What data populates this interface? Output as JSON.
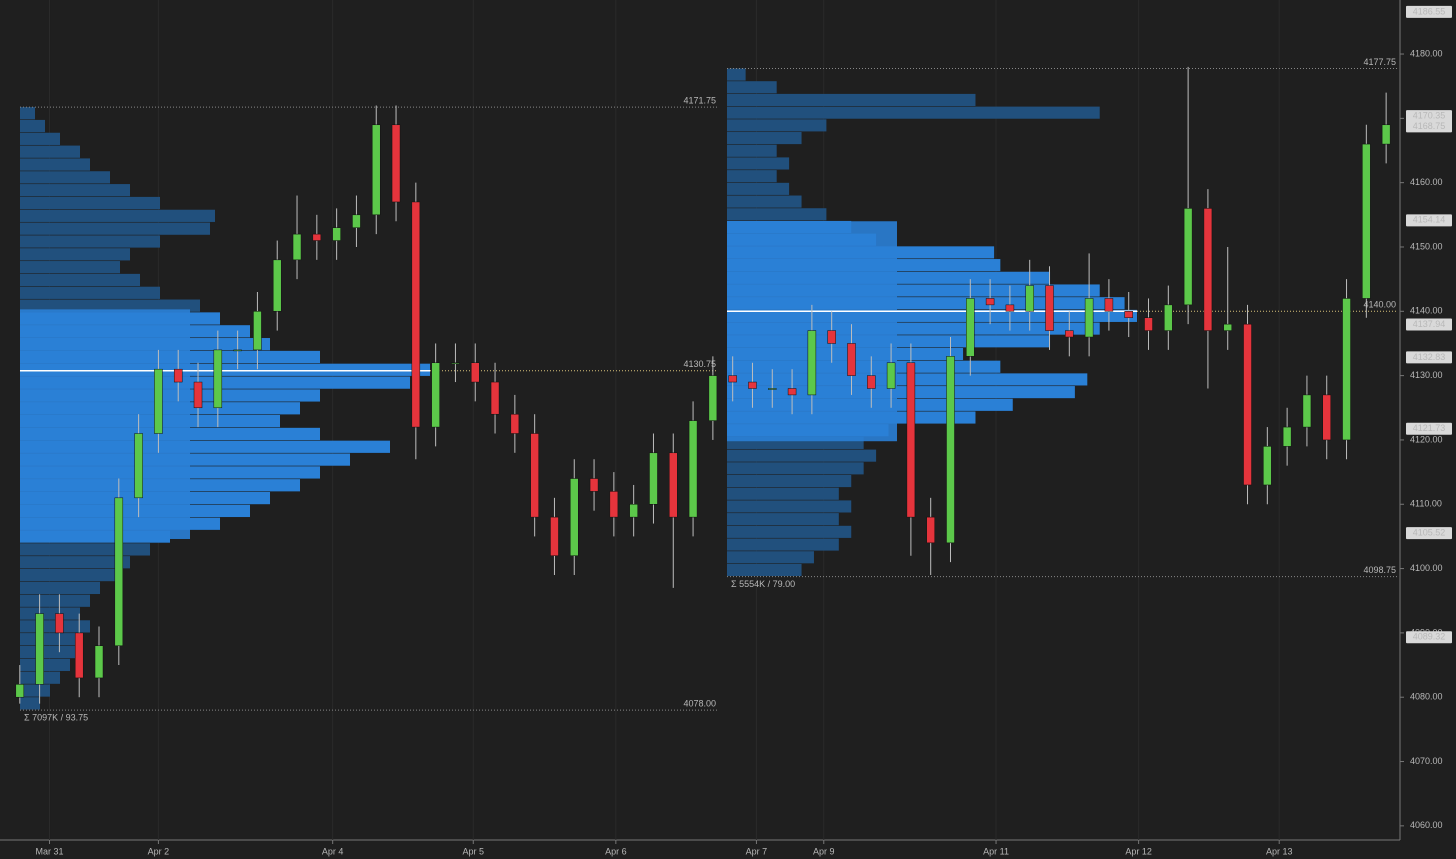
{
  "chart_data": {
    "type": "candlestick",
    "x": [
      0,
      1,
      2,
      3,
      4,
      5,
      6,
      7,
      8,
      9,
      10,
      11,
      12,
      13,
      14,
      15,
      16,
      17,
      18,
      19,
      20,
      21,
      22,
      23,
      24,
      25,
      26,
      27,
      28,
      29,
      30,
      31,
      32,
      33,
      34,
      35,
      36,
      37,
      38,
      39,
      40,
      41,
      42,
      43,
      44,
      45,
      46,
      47,
      48,
      49,
      50,
      51,
      52,
      53,
      54,
      55,
      56,
      57,
      58,
      59,
      60,
      61,
      62,
      63,
      64,
      65,
      66,
      67,
      68,
      69
    ],
    "open": [
      4080,
      4082,
      4093,
      4090,
      4083,
      4088,
      4111,
      4121,
      4131,
      4129,
      4125,
      4134,
      4134,
      4140,
      4148,
      4152,
      4151,
      4153,
      4155,
      4169,
      4157,
      4122,
      4132,
      4132,
      4129,
      4124,
      4121,
      4108,
      4102,
      4114,
      4112,
      4108,
      4110,
      4118,
      4108,
      4123,
      4130,
      4129,
      4128,
      4128,
      4127,
      4137,
      4135,
      4130,
      4128,
      4132,
      4108,
      4104,
      4133,
      4142,
      4141,
      4140,
      4144,
      4137,
      4136,
      4142,
      4140,
      4139,
      4137,
      4141,
      4156,
      4137,
      4138,
      4113,
      4119,
      4122,
      4127,
      4120,
      4142,
      4166
    ],
    "high": [
      4085,
      4096,
      4096,
      4093,
      4091,
      4114,
      4124,
      4134,
      4134,
      4132,
      4137,
      4137,
      4143,
      4151,
      4158,
      4155,
      4156,
      4158,
      4172,
      4172,
      4160,
      4135,
      4135,
      4135,
      4132,
      4127,
      4124,
      4111,
      4117,
      4117,
      4115,
      4113,
      4121,
      4121,
      4126,
      4133,
      4133,
      4132,
      4131,
      4131,
      4141,
      4140,
      4138,
      4133,
      4135,
      4135,
      4111,
      4136,
      4145,
      4145,
      4144,
      4148,
      4147,
      4140,
      4149,
      4145,
      4143,
      4142,
      4144,
      4178,
      4159,
      4150,
      4141,
      4122,
      4125,
      4130,
      4130,
      4145,
      4169,
      4174
    ],
    "low": [
      4079,
      4079,
      4087,
      4080,
      4080,
      4085,
      4108,
      4118,
      4126,
      4122,
      4122,
      4131,
      4131,
      4137,
      4145,
      4148,
      4148,
      4150,
      4152,
      4154,
      4117,
      4119,
      4129,
      4126,
      4121,
      4118,
      4105,
      4099,
      4099,
      4109,
      4105,
      4105,
      4107,
      4097,
      4105,
      4120,
      4126,
      4125,
      4125,
      4124,
      4124,
      4132,
      4127,
      4125,
      4125,
      4102,
      4099,
      4101,
      4130,
      4138,
      4137,
      4137,
      4134,
      4133,
      4133,
      4137,
      4136,
      4134,
      4134,
      4138,
      4128,
      4134,
      4110,
      4110,
      4116,
      4119,
      4117,
      4117,
      4139,
      4163
    ],
    "close": [
      4082,
      4093,
      4090,
      4083,
      4088,
      4111,
      4121,
      4131,
      4129,
      4125,
      4134,
      4134,
      4140,
      4148,
      4152,
      4151,
      4153,
      4155,
      4169,
      4157,
      4122,
      4132,
      4132,
      4129,
      4124,
      4121,
      4108,
      4102,
      4114,
      4112,
      4108,
      4110,
      4118,
      4108,
      4123,
      4130,
      4129,
      4128,
      4128,
      4127,
      4137,
      4135,
      4130,
      4128,
      4132,
      4108,
      4104,
      4133,
      4142,
      4141,
      4140,
      4144,
      4137,
      4136,
      4142,
      4140,
      4139,
      4137,
      4141,
      4156,
      4137,
      4138,
      4113,
      4119,
      4122,
      4127,
      4120,
      4142,
      4166,
      4169
    ],
    "up_color": "#5cc84a",
    "down_color": "#e5343c",
    "xlim": [
      -1,
      69.7
    ],
    "xticks": [
      {
        "value": 1.5,
        "label": "Mar 31"
      },
      {
        "value": 7,
        "label": "Apr 2"
      },
      {
        "value": 15.8,
        "label": "Apr 4"
      },
      {
        "value": 22.9,
        "label": "Apr 5"
      },
      {
        "value": 30.1,
        "label": "Apr 6"
      },
      {
        "value": 37.2,
        "label": "Apr 7"
      },
      {
        "value": 40.6,
        "label": "Apr 9"
      },
      {
        "value": 49.3,
        "label": "Apr 11"
      },
      {
        "value": 56.5,
        "label": "Apr 12"
      },
      {
        "value": 63.6,
        "label": "Apr 13"
      }
    ],
    "ylim": [
      4057.8,
      4188.4
    ],
    "yticks": [
      {
        "value": 4060,
        "label": "4060.00"
      },
      {
        "value": 4070,
        "label": "4070.00"
      },
      {
        "value": 4080,
        "label": "4080.00"
      },
      {
        "value": 4090,
        "label": "4090.00"
      },
      {
        "value": 4100,
        "label": "4100.00"
      },
      {
        "value": 4110,
        "label": "4110.00"
      },
      {
        "value": 4120,
        "label": "4120.00"
      },
      {
        "value": 4130,
        "label": "4130.00"
      },
      {
        "value": 4140,
        "label": "4140.00"
      },
      {
        "value": 4150,
        "label": "4150.00"
      },
      {
        "value": 4160,
        "label": "4160.00"
      },
      {
        "value": 4170,
        "label": "4170.00"
      },
      {
        "value": 4180,
        "label": "4180.00"
      }
    ],
    "price_tags": [
      {
        "value": 4186.55,
        "label": "4186.55"
      },
      {
        "value": 4170.35,
        "label": "4170.35"
      },
      {
        "value": 4168.75,
        "label": "4168.75"
      },
      {
        "value": 4154.14,
        "label": "4154.14"
      },
      {
        "value": 4137.94,
        "label": "4137.94"
      },
      {
        "value": 4132.83,
        "label": "4132.83"
      },
      {
        "value": 4121.73,
        "label": "4121.73"
      },
      {
        "value": 4105.52,
        "label": "4105.52"
      },
      {
        "value": 4089.32,
        "label": "4089.32"
      }
    ],
    "profiles": [
      {
        "high": 4171.75,
        "low": {
          "value": 4078.0,
          "label": "4078.00"
        },
        "poc": 4130.75,
        "va_high": 4140.3,
        "va_low": 4104.6,
        "summary": "Σ 7097K / 93.75",
        "volumes": [
          20,
          30,
          40,
          50,
          55,
          60,
          70,
          60,
          70,
          80,
          100,
          110,
          130,
          150,
          200,
          230,
          250,
          280,
          300,
          330,
          370,
          300,
          260,
          280,
          300,
          390,
          410,
          300,
          250,
          230,
          200,
          180,
          140,
          120,
          100,
          110,
          140,
          190,
          195,
          140,
          110,
          90,
          70,
          60,
          40,
          25,
          15
        ]
      },
      {
        "high": 4177.75,
        "low": 4098.75,
        "poc": {
          "value": 4140.0,
          "label": "4140.00"
        },
        "va_high": 4154.0,
        "va_low": 4119.8,
        "summary": "Σ 5554K / 79.00",
        "volumes": [
          60,
          70,
          90,
          100,
          90,
          100,
          90,
          100,
          110,
          120,
          110,
          130,
          200,
          230,
          280,
          290,
          220,
          190,
          260,
          300,
          330,
          320,
          300,
          260,
          220,
          215,
          120,
          100,
          80,
          60,
          50,
          40,
          50,
          40,
          60,
          80,
          300,
          200,
          40,
          15
        ]
      }
    ],
    "va_color": "#2a80d6",
    "outside_color": "#21507d"
  }
}
